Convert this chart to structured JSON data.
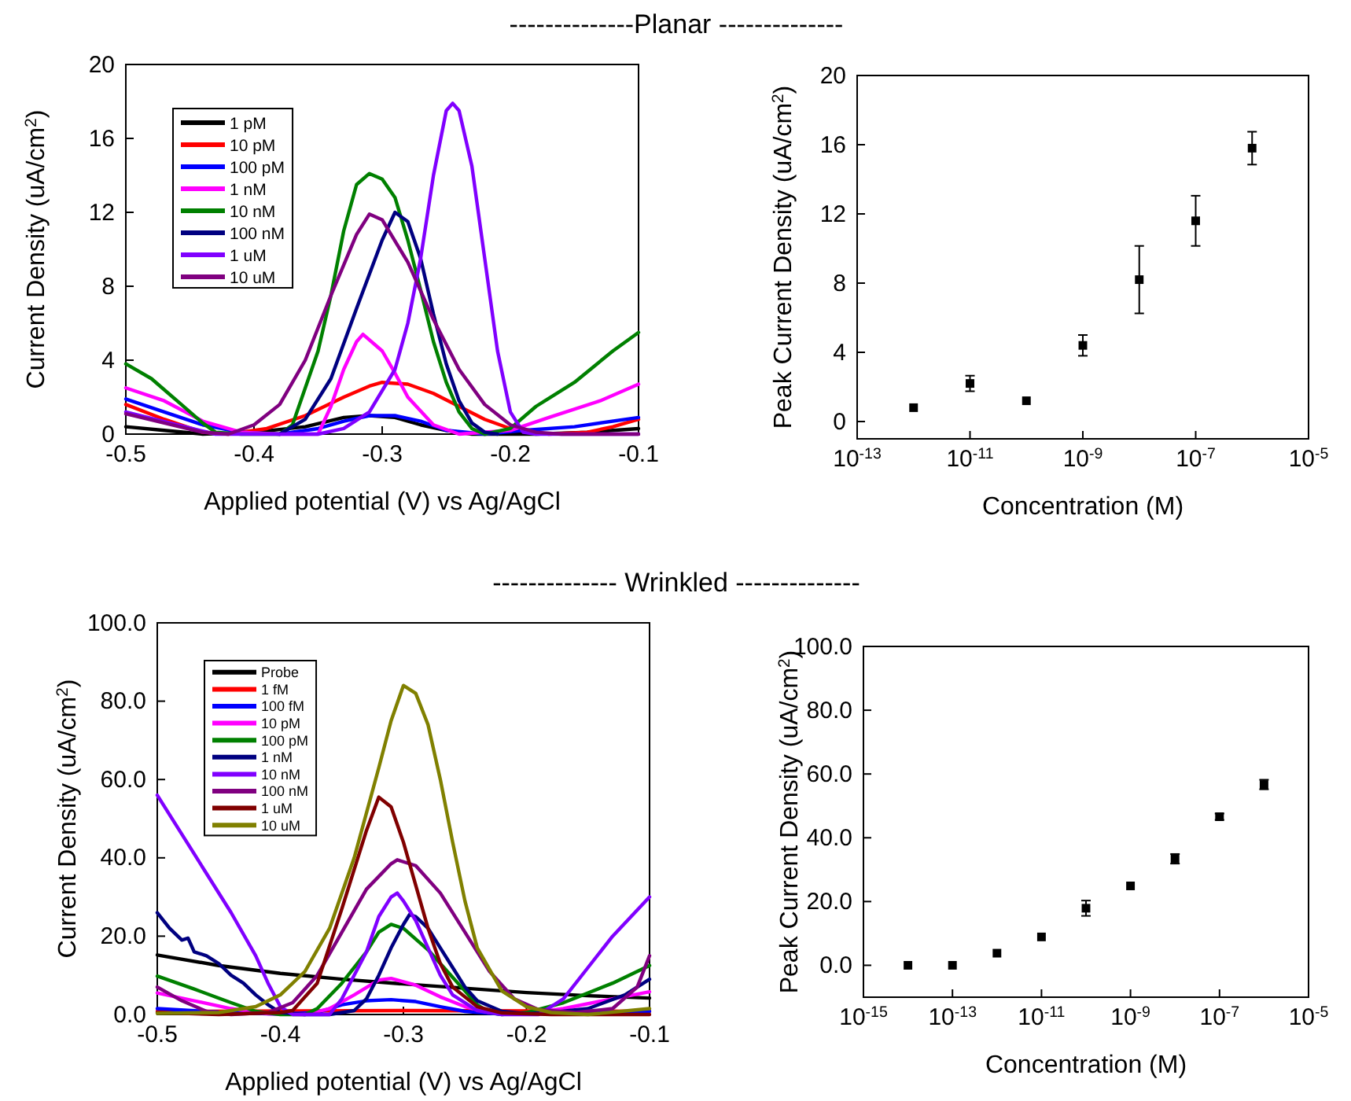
{
  "chart_data": [
    {
      "type": "line",
      "title": "--------------Planar --------------",
      "xlabel": "Applied potential (V) vs Ag/AgCl",
      "ylabel": "Current Density (uA/cm$^{2}$)",
      "xlim": [
        -0.5,
        -0.1
      ],
      "ylim": [
        0,
        20
      ],
      "xticks": [
        -0.5,
        -0.4,
        -0.3,
        -0.2,
        -0.1
      ],
      "yticks": [
        0,
        4,
        8,
        12,
        16,
        20
      ],
      "legend": "top left",
      "series": [
        {
          "name": "1 pM",
          "color": "#000000",
          "x": [
            -0.5,
            -0.47,
            -0.44,
            -0.4,
            -0.36,
            -0.33,
            -0.31,
            -0.29,
            -0.27,
            -0.25,
            -0.23,
            -0.18,
            -0.14,
            -0.1
          ],
          "values": [
            0.4,
            0.2,
            0.0,
            0.1,
            0.4,
            0.9,
            1.0,
            0.9,
            0.5,
            0.2,
            0.0,
            0.0,
            0.1,
            0.3
          ]
        },
        {
          "name": "10 pM",
          "color": "#ff0000",
          "x": [
            -0.5,
            -0.47,
            -0.44,
            -0.42,
            -0.39,
            -0.36,
            -0.33,
            -0.31,
            -0.3,
            -0.28,
            -0.26,
            -0.24,
            -0.22,
            -0.2,
            -0.17,
            -0.14,
            -0.12,
            -0.1
          ],
          "values": [
            1.6,
            0.8,
            0.1,
            0.0,
            0.3,
            1.0,
            2.0,
            2.6,
            2.8,
            2.7,
            2.2,
            1.5,
            0.8,
            0.3,
            0.0,
            0.1,
            0.4,
            0.8
          ]
        },
        {
          "name": "100 pM",
          "color": "#0000ff",
          "x": [
            -0.5,
            -0.47,
            -0.44,
            -0.41,
            -0.38,
            -0.35,
            -0.33,
            -0.31,
            -0.29,
            -0.27,
            -0.25,
            -0.22,
            -0.19,
            -0.15,
            -0.1
          ],
          "values": [
            1.9,
            1.2,
            0.5,
            0.1,
            0.0,
            0.3,
            0.7,
            1.0,
            1.0,
            0.7,
            0.2,
            0.0,
            0.2,
            0.4,
            0.9
          ]
        },
        {
          "name": "1 nM",
          "color": "#ff00ff",
          "x": [
            -0.5,
            -0.47,
            -0.44,
            -0.41,
            -0.38,
            -0.35,
            -0.34,
            -0.33,
            -0.32,
            -0.315,
            -0.3,
            -0.29,
            -0.28,
            -0.26,
            -0.24,
            -0.2,
            -0.17,
            -0.13,
            -0.1
          ],
          "values": [
            2.5,
            1.8,
            0.7,
            0.1,
            0.0,
            0.0,
            1.5,
            3.5,
            5.0,
            5.4,
            4.5,
            3.3,
            2.0,
            0.5,
            0.0,
            0.2,
            0.9,
            1.8,
            2.7
          ]
        },
        {
          "name": "10 nM",
          "color": "#008000",
          "x": [
            -0.5,
            -0.48,
            -0.46,
            -0.44,
            -0.43,
            -0.41,
            -0.38,
            -0.37,
            -0.35,
            -0.34,
            -0.33,
            -0.32,
            -0.31,
            -0.3,
            -0.29,
            -0.28,
            -0.27,
            -0.26,
            -0.25,
            -0.24,
            -0.23,
            -0.22,
            -0.2,
            -0.18,
            -0.15,
            -0.12,
            -0.1
          ],
          "values": [
            3.8,
            3.0,
            1.8,
            0.6,
            0.1,
            0.0,
            0.0,
            0.5,
            4.5,
            7.5,
            11,
            13.5,
            14.1,
            13.8,
            12.8,
            10.5,
            7.8,
            5.0,
            2.8,
            1.2,
            0.3,
            0.0,
            0.3,
            1.5,
            2.8,
            4.5,
            5.5
          ]
        },
        {
          "name": "100 nM",
          "color": "#000080",
          "x": [
            -0.38,
            -0.36,
            -0.34,
            -0.32,
            -0.3,
            -0.29,
            -0.28,
            -0.27,
            -0.26,
            -0.25,
            -0.24,
            -0.23,
            -0.22,
            -0.21
          ],
          "values": [
            0.0,
            0.8,
            3.0,
            6.8,
            10.5,
            12.0,
            11.5,
            9.5,
            6.5,
            3.8,
            1.8,
            0.6,
            0.1,
            0.0
          ]
        },
        {
          "name": "1 uM",
          "color": "#8000ff",
          "x": [
            -0.5,
            -0.46,
            -0.43,
            -0.35,
            -0.33,
            -0.31,
            -0.29,
            -0.28,
            -0.27,
            -0.26,
            -0.25,
            -0.245,
            -0.24,
            -0.23,
            -0.22,
            -0.21,
            -0.2,
            -0.19,
            -0.18,
            -0.1
          ],
          "values": [
            1.2,
            0.5,
            0.0,
            0.0,
            0.3,
            1.2,
            3.5,
            6,
            9.5,
            14,
            17.5,
            17.9,
            17.5,
            14.5,
            9.5,
            4.5,
            1.2,
            0.1,
            0.0,
            0.0
          ]
        },
        {
          "name": "10 uM",
          "color": "#800080",
          "x": [
            -0.5,
            -0.47,
            -0.44,
            -0.42,
            -0.4,
            -0.38,
            -0.36,
            -0.34,
            -0.32,
            -0.31,
            -0.3,
            -0.28,
            -0.26,
            -0.24,
            -0.22,
            -0.2,
            -0.18,
            -0.16,
            -0.1
          ],
          "values": [
            1.1,
            0.6,
            0.1,
            0.0,
            0.5,
            1.6,
            4.0,
            7.5,
            10.8,
            11.9,
            11.6,
            9.3,
            6.2,
            3.5,
            1.6,
            0.5,
            0.1,
            0.0,
            0.0
          ]
        }
      ]
    },
    {
      "type": "scatter",
      "xlabel": "Concentration (M)",
      "ylabel": "Peak Current Density (uA/cm$^{2}$)",
      "log": "x",
      "xlim": [
        1e-13,
        1e-05
      ],
      "ylim": [
        -1,
        20
      ],
      "xticks": [
        {
          "value": 1e-13,
          "label": "10$^{-13}$"
        },
        {
          "value": 1e-11,
          "label": "10$^{-11}$"
        },
        {
          "value": 1e-09,
          "label": "10$^{-9}$"
        },
        {
          "value": 1e-07,
          "label": "10$^{-7}$"
        },
        {
          "value": 1e-05,
          "label": "10$^{-5}$"
        }
      ],
      "yticks": [
        0,
        4,
        8,
        12,
        16,
        20
      ],
      "marker": "square",
      "color": "#000000",
      "x": [
        1e-12,
        1e-11,
        1e-10,
        1e-09,
        1e-08,
        1e-07,
        1e-06
      ],
      "values": [
        0.8,
        2.2,
        1.2,
        4.4,
        8.2,
        11.6,
        15.8
      ],
      "errors": [
        null,
        0.45,
        null,
        0.6,
        1.95,
        1.45,
        0.95
      ]
    },
    {
      "type": "line",
      "title": "-------------- Wrinkled --------------",
      "xlabel": "Applied potential (V) vs Ag/AgCl",
      "ylabel": "Current Density (uA/cm$^{2}$)",
      "xlim": [
        -0.5,
        -0.1
      ],
      "ylim": [
        0,
        100
      ],
      "xticks": [
        -0.5,
        -0.4,
        -0.3,
        -0.2,
        -0.1
      ],
      "yticks": [
        {
          "value": 0,
          "label": "0.0"
        },
        {
          "value": 20,
          "label": "20.0"
        },
        {
          "value": 40,
          "label": "40.0"
        },
        {
          "value": 60,
          "label": "60.0"
        },
        {
          "value": 80,
          "label": "80.0"
        },
        {
          "value": 100,
          "label": "100.0"
        }
      ],
      "legend": "top left",
      "series": [
        {
          "name": "Probe",
          "color": "#000000",
          "x": [
            -0.5,
            -0.45,
            -0.4,
            -0.35,
            -0.3,
            -0.25,
            -0.2,
            -0.15,
            -0.1
          ],
          "values": [
            15.2,
            12.5,
            10.5,
            9,
            7.8,
            6.7,
            5.6,
            4.8,
            4.2
          ]
        },
        {
          "name": "1 fM",
          "color": "#ff0000",
          "x": [
            -0.5,
            -0.3,
            -0.1
          ],
          "values": [
            0.8,
            1,
            0.8
          ]
        },
        {
          "name": "100 fM",
          "color": "#0000ff",
          "x": [
            -0.5,
            -0.45,
            -0.4,
            -0.37,
            -0.35,
            -0.33,
            -0.31,
            -0.29,
            -0.27,
            -0.25,
            -0.22,
            -0.18,
            -0.1
          ],
          "values": [
            1.5,
            0.6,
            0.1,
            0.5,
            2.5,
            3.5,
            3.8,
            3.3,
            2.0,
            0.8,
            0.1,
            0.2,
            0.8
          ]
        },
        {
          "name": "10 pM",
          "color": "#ff00ff",
          "x": [
            -0.5,
            -0.47,
            -0.44,
            -0.41,
            -0.38,
            -0.36,
            -0.34,
            -0.32,
            -0.31,
            -0.29,
            -0.27,
            -0.25,
            -0.23,
            -0.2,
            -0.17,
            -0.13,
            -0.1
          ],
          "values": [
            5.5,
            3.5,
            1.5,
            0.2,
            0.0,
            1.5,
            5,
            8.8,
            9.2,
            7.5,
            4.5,
            2.0,
            0.5,
            0.2,
            1.5,
            4,
            5.8
          ]
        },
        {
          "name": "100 pM",
          "color": "#008000",
          "x": [
            -0.5,
            -0.47,
            -0.44,
            -0.42,
            -0.4,
            -0.38,
            -0.37,
            -0.35,
            -0.33,
            -0.32,
            -0.31,
            -0.3,
            -0.28,
            -0.26,
            -0.25,
            -0.24,
            -0.23,
            -0.22,
            -0.2,
            -0.17,
            -0.13,
            -0.1
          ],
          "values": [
            9.8,
            6.5,
            3.0,
            0.8,
            0.0,
            0.0,
            1.5,
            8,
            16,
            21,
            23,
            22,
            16.5,
            9.5,
            6,
            2.5,
            0.5,
            0.0,
            0.5,
            3,
            8,
            12.5
          ]
        },
        {
          "name": "1 nM",
          "color": "#000080",
          "x": [
            -0.5,
            -0.49,
            -0.48,
            -0.475,
            -0.47,
            -0.46,
            -0.45,
            -0.44,
            -0.43,
            -0.42,
            -0.41,
            -0.4,
            -0.38,
            -0.36,
            -0.34,
            -0.33,
            -0.32,
            -0.31,
            -0.3,
            -0.295,
            -0.29,
            -0.28,
            -0.27,
            -0.26,
            -0.25,
            -0.24,
            -0.22,
            -0.2,
            -0.18,
            -0.15,
            -0.12,
            -0.1
          ],
          "values": [
            26,
            22,
            19,
            19.5,
            16,
            15,
            13,
            10,
            8,
            5,
            2.5,
            0.5,
            0.0,
            0.0,
            1,
            4,
            10,
            17,
            23,
            25.5,
            25,
            22,
            17,
            12,
            7,
            3.5,
            0.8,
            0.2,
            0.5,
            1.5,
            5,
            9
          ]
        },
        {
          "name": "10 nM",
          "color": "#8000ff",
          "x": [
            -0.5,
            -0.48,
            -0.46,
            -0.44,
            -0.42,
            -0.41,
            -0.4,
            -0.39,
            -0.36,
            -0.35,
            -0.33,
            -0.32,
            -0.31,
            -0.305,
            -0.3,
            -0.29,
            -0.28,
            -0.27,
            -0.26,
            -0.24,
            -0.22,
            -0.19,
            -0.17,
            -0.15,
            -0.13,
            -0.1
          ],
          "values": [
            56,
            46,
            36,
            26,
            15,
            8,
            2,
            0,
            0,
            4,
            16,
            25,
            30,
            31,
            29,
            24,
            17,
            10,
            5,
            1,
            0,
            0,
            4,
            12,
            20,
            30
          ]
        },
        {
          "name": "100 nM",
          "color": "#800080",
          "x": [
            -0.5,
            -0.48,
            -0.46,
            -0.44,
            -0.41,
            -0.39,
            -0.37,
            -0.35,
            -0.33,
            -0.31,
            -0.305,
            -0.29,
            -0.27,
            -0.25,
            -0.23,
            -0.21,
            -0.19,
            -0.16,
            -0.13,
            -0.11,
            -0.1
          ],
          "values": [
            7,
            3.5,
            0.8,
            0,
            0.5,
            3,
            10,
            21,
            32,
            38.5,
            39.5,
            38,
            31,
            21,
            11,
            4,
            1.2,
            0.5,
            1.5,
            7,
            15
          ]
        },
        {
          "name": "1 uM",
          "color": "#800000",
          "x": [
            -0.5,
            -0.45,
            -0.4,
            -0.39,
            -0.37,
            -0.35,
            -0.33,
            -0.32,
            -0.31,
            -0.3,
            -0.29,
            -0.28,
            -0.27,
            -0.26,
            -0.24,
            -0.22,
            -0.18,
            -0.1
          ],
          "values": [
            0.5,
            0,
            0.5,
            1,
            8,
            27,
            47,
            55.5,
            53,
            44,
            33,
            22,
            13,
            7,
            2,
            0.4,
            0,
            0
          ]
        },
        {
          "name": "10 uM",
          "color": "#808000",
          "x": [
            -0.5,
            -0.45,
            -0.42,
            -0.4,
            -0.38,
            -0.36,
            -0.34,
            -0.32,
            -0.31,
            -0.3,
            -0.29,
            -0.28,
            -0.27,
            -0.26,
            -0.25,
            -0.24,
            -0.22,
            -0.2,
            -0.18,
            -0.15,
            -0.1
          ],
          "values": [
            0.3,
            0.5,
            2,
            5,
            11,
            22,
            40,
            63,
            75,
            84,
            82,
            74,
            60,
            44,
            29,
            17,
            6,
            2,
            0.5,
            0,
            1.5
          ]
        }
      ]
    },
    {
      "type": "scatter",
      "xlabel": "Concentration (M)",
      "ylabel": "Peak Current Density (uA/cm$^{2}$)",
      "log": "x",
      "xlim": [
        1e-15,
        1e-05
      ],
      "ylim": [
        -10,
        100
      ],
      "xticks": [
        {
          "value": 1e-15,
          "label": "10$^{-15}$"
        },
        {
          "value": 1e-13,
          "label": "10$^{-13}$"
        },
        {
          "value": 1e-11,
          "label": "10$^{-11}$"
        },
        {
          "value": 1e-09,
          "label": "10$^{-9}$"
        },
        {
          "value": 1e-07,
          "label": "10$^{-7}$"
        },
        {
          "value": 1e-05,
          "label": "10$^{-5}$"
        }
      ],
      "yticks": [
        {
          "value": 0,
          "label": "0.0"
        },
        {
          "value": 20,
          "label": "20.0"
        },
        {
          "value": 40,
          "label": "40.0"
        },
        {
          "value": 60,
          "label": "60.0"
        },
        {
          "value": 80,
          "label": "80.0"
        },
        {
          "value": 100,
          "label": "100.0"
        }
      ],
      "marker": "square",
      "color": "#000000",
      "x": [
        1e-14,
        1e-13,
        1e-12,
        1e-11,
        1e-10,
        1e-09,
        1e-08,
        1e-07,
        1e-06
      ],
      "values": [
        0,
        0,
        3.8,
        8.9,
        17.9,
        24.9,
        33.4,
        46.6,
        56.7
      ],
      "errors": [
        null,
        null,
        null,
        null,
        2.4,
        null,
        1.5,
        1,
        1.5
      ]
    }
  ]
}
